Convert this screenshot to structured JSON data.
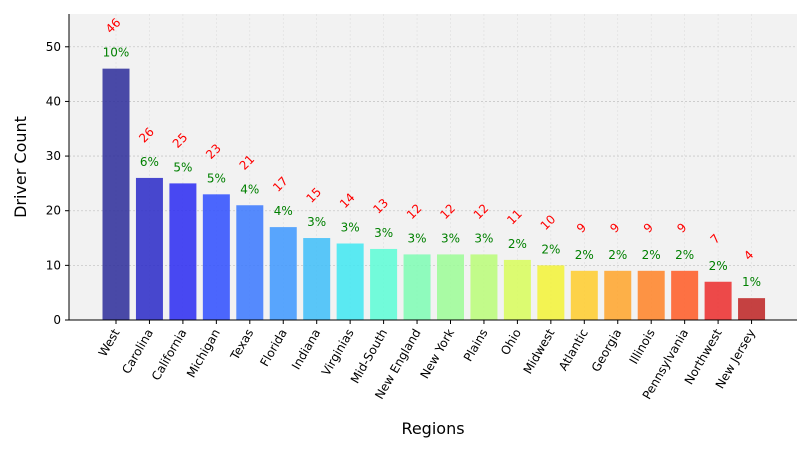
{
  "chart_data": {
    "type": "bar",
    "title": "",
    "xlabel": "Regions",
    "ylabel": "Driver Count",
    "ylim": [
      0,
      56
    ],
    "yticks": [
      0,
      10,
      20,
      30,
      40,
      50
    ],
    "grid": true,
    "categories": [
      "West",
      "Carolina",
      "California",
      "Michigan",
      "Texas",
      "Florida",
      "Indiana",
      "Virginias",
      "Mid-South",
      "New England",
      "New York",
      "Plains",
      "Ohio",
      "Midwest",
      "Atlantic",
      "Georgia",
      "Illinois",
      "Pennsylvania",
      "Northwest",
      "New Jersey"
    ],
    "values": [
      46,
      26,
      25,
      23,
      21,
      17,
      15,
      14,
      13,
      12,
      12,
      12,
      11,
      10,
      9,
      9,
      9,
      9,
      7,
      4
    ],
    "count_labels": [
      "46",
      "26",
      "25",
      "23",
      "21",
      "17",
      "15",
      "14",
      "13",
      "12",
      "12",
      "12",
      "11",
      "10",
      "9",
      "9",
      "9",
      "9",
      "7",
      "4"
    ],
    "percent_labels": [
      "10%",
      "6%",
      "5%",
      "5%",
      "4%",
      "4%",
      "3%",
      "3%",
      "3%",
      "3%",
      "3%",
      "3%",
      "2%",
      "2%",
      "2%",
      "2%",
      "2%",
      "2%",
      "2%",
      "1%"
    ],
    "colors": [
      "#2b2b9a",
      "#2929c8",
      "#2a2af2",
      "#2e4dff",
      "#3a78ff",
      "#3d98ff",
      "#3ebef9",
      "#3fe8f2",
      "#5cfdd6",
      "#7efdb4",
      "#9cfd96",
      "#bafd78",
      "#d8fd5a",
      "#f3f336",
      "#ffcc2c",
      "#ffa52a",
      "#ff8226",
      "#ff5b24",
      "#ec2b2b",
      "#bd2222"
    ]
  }
}
